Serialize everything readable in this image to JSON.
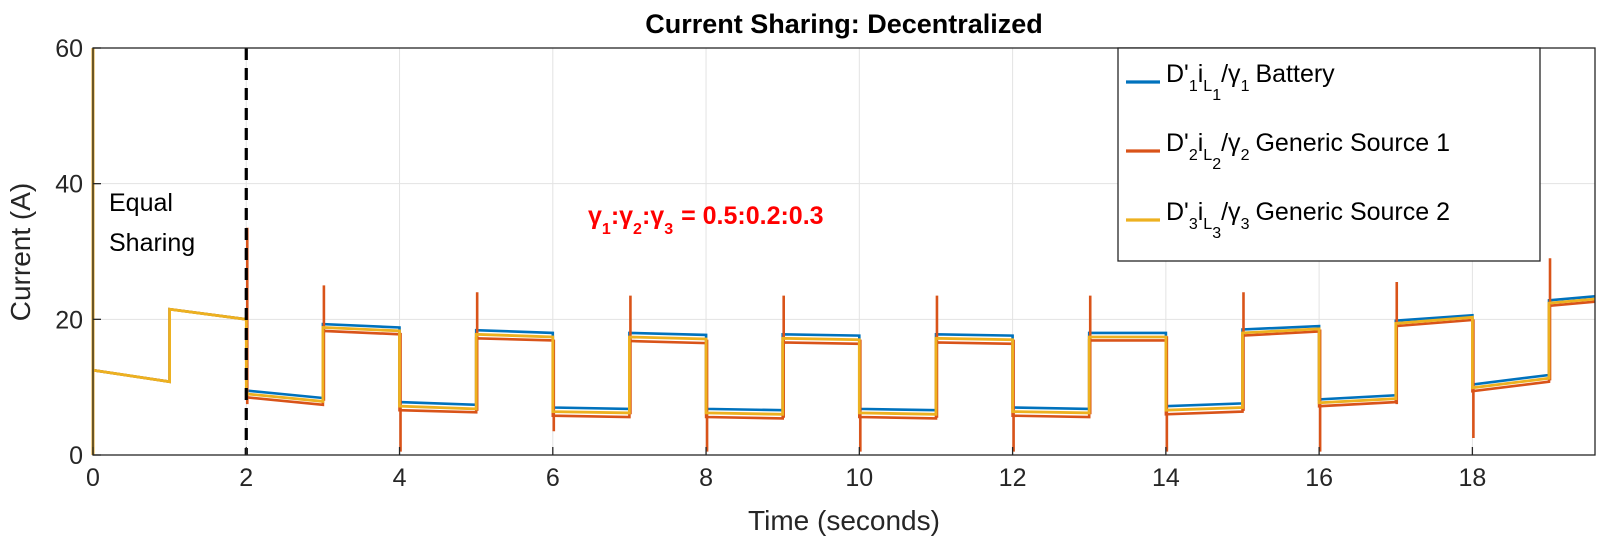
{
  "chart_data": {
    "type": "line",
    "title": "Current Sharing: Decentralized",
    "xlabel": "Time (seconds)",
    "ylabel": "Current (A)",
    "xlim": [
      0,
      19.6
    ],
    "ylim": [
      0,
      60
    ],
    "xticks": [
      0,
      2,
      4,
      6,
      8,
      10,
      12,
      14,
      16,
      18
    ],
    "yticks": [
      0,
      20,
      40,
      60
    ],
    "grid": true,
    "legend_position": "top-right",
    "colors": {
      "battery": "#0072BD",
      "source1": "#D95319",
      "source2": "#EDB120"
    },
    "legend": [
      {
        "pre": "D'",
        "s1": "1",
        "mid": "i",
        "s2": "L",
        "s3": "1",
        "slash": "/γ",
        "s4": "1",
        "label": "Battery",
        "color": "#0072BD"
      },
      {
        "pre": "D'",
        "s1": "2",
        "mid": "i",
        "s2": "L",
        "s3": "2",
        "slash": "/γ",
        "s4": "2",
        "label": "Generic Source 1",
        "color": "#D95319"
      },
      {
        "pre": "D'",
        "s1": "3",
        "mid": "i",
        "s2": "L",
        "s3": "3",
        "slash": "/γ",
        "s4": "3",
        "label": "Generic Source 2",
        "color": "#EDB120"
      }
    ],
    "annotations": {
      "equal_line1": "Equal",
      "equal_line2": "Sharing",
      "divider_x": 2,
      "ratio": {
        "g": "γ",
        "s1": "1",
        "c1": ":",
        "s2": "2",
        "c2": ":",
        "s3": "3",
        "value": "= 0.5:0.2:0.3"
      }
    },
    "equal_phase": [
      [
        0,
        12.5
      ],
      [
        1,
        10.8
      ],
      [
        1,
        21.5
      ],
      [
        2,
        20
      ]
    ],
    "step_segments": [
      {
        "start": 2,
        "end": 3,
        "battery": [
          9.5,
          8.4
        ],
        "source1": [
          8.5,
          7.4
        ],
        "source2": [
          9.0,
          7.9
        ]
      },
      {
        "start": 3,
        "end": 4,
        "battery": [
          19.3,
          18.8
        ],
        "source1": [
          18.3,
          17.8
        ],
        "source2": [
          18.8,
          18.3
        ]
      },
      {
        "start": 4,
        "end": 5,
        "battery": [
          7.8,
          7.4
        ],
        "source1": [
          6.6,
          6.3
        ],
        "source2": [
          7.2,
          6.8
        ]
      },
      {
        "start": 5,
        "end": 6,
        "battery": [
          18.4,
          18.0
        ],
        "source1": [
          17.2,
          16.9
        ],
        "source2": [
          17.8,
          17.4
        ]
      },
      {
        "start": 6,
        "end": 7,
        "battery": [
          7.0,
          6.8
        ],
        "source1": [
          5.8,
          5.6
        ],
        "source2": [
          6.4,
          6.2
        ]
      },
      {
        "start": 7,
        "end": 8,
        "battery": [
          18.0,
          17.7
        ],
        "source1": [
          16.8,
          16.5
        ],
        "source2": [
          17.4,
          17.1
        ]
      },
      {
        "start": 8,
        "end": 9,
        "battery": [
          6.8,
          6.6
        ],
        "source1": [
          5.6,
          5.4
        ],
        "source2": [
          6.2,
          6.0
        ]
      },
      {
        "start": 9,
        "end": 10,
        "battery": [
          17.8,
          17.6
        ],
        "source1": [
          16.6,
          16.4
        ],
        "source2": [
          17.2,
          17.0
        ]
      },
      {
        "start": 10,
        "end": 11,
        "battery": [
          6.8,
          6.6
        ],
        "source1": [
          5.6,
          5.4
        ],
        "source2": [
          6.2,
          6.0
        ]
      },
      {
        "start": 11,
        "end": 12,
        "battery": [
          17.8,
          17.6
        ],
        "source1": [
          16.6,
          16.4
        ],
        "source2": [
          17.2,
          17.0
        ]
      },
      {
        "start": 12,
        "end": 13,
        "battery": [
          7.0,
          6.8
        ],
        "source1": [
          5.8,
          5.6
        ],
        "source2": [
          6.4,
          6.2
        ]
      },
      {
        "start": 13,
        "end": 14,
        "battery": [
          18.0,
          18.0
        ],
        "source1": [
          16.9,
          16.9
        ],
        "source2": [
          17.4,
          17.4
        ]
      },
      {
        "start": 14,
        "end": 15,
        "battery": [
          7.2,
          7.6
        ],
        "source1": [
          6.0,
          6.4
        ],
        "source2": [
          6.6,
          7.0
        ]
      },
      {
        "start": 15,
        "end": 16,
        "battery": [
          18.5,
          19.0
        ],
        "source1": [
          17.6,
          18.2
        ],
        "source2": [
          18.0,
          18.6
        ]
      },
      {
        "start": 16,
        "end": 17,
        "battery": [
          8.2,
          8.8
        ],
        "source1": [
          7.2,
          7.8
        ],
        "source2": [
          7.7,
          8.3
        ]
      },
      {
        "start": 17,
        "end": 18,
        "battery": [
          19.8,
          20.6
        ],
        "source1": [
          19.0,
          19.9
        ],
        "source2": [
          19.4,
          20.3
        ]
      },
      {
        "start": 18,
        "end": 19,
        "battery": [
          10.4,
          11.8
        ],
        "source1": [
          9.4,
          10.8
        ],
        "source2": [
          9.9,
          11.3
        ]
      },
      {
        "start": 19,
        "end": 19.6,
        "battery": [
          22.8,
          23.4
        ],
        "source1": [
          22.0,
          22.6
        ],
        "source2": [
          22.4,
          23.0
        ]
      }
    ],
    "source1_spikes": [
      {
        "x": 2,
        "low": 7.5,
        "high": 33.5
      },
      {
        "x": 3,
        "low": 8.0,
        "high": 25.0
      },
      {
        "x": 4,
        "low": 0.5,
        "high": 18.0
      },
      {
        "x": 5,
        "low": 6.5,
        "high": 24.0
      },
      {
        "x": 6,
        "low": 3.5,
        "high": 17.0
      },
      {
        "x": 7,
        "low": 6.0,
        "high": 23.5
      },
      {
        "x": 8,
        "low": 0.5,
        "high": 17.0
      },
      {
        "x": 9,
        "low": 5.5,
        "high": 23.5
      },
      {
        "x": 10,
        "low": 0.5,
        "high": 17.0
      },
      {
        "x": 11,
        "low": 5.5,
        "high": 23.5
      },
      {
        "x": 12,
        "low": 0.5,
        "high": 17.0
      },
      {
        "x": 13,
        "low": 6.0,
        "high": 23.5
      },
      {
        "x": 14,
        "low": 0.5,
        "high": 17.5
      },
      {
        "x": 15,
        "low": 6.5,
        "high": 24.0
      },
      {
        "x": 16,
        "low": 0.5,
        "high": 18.5
      },
      {
        "x": 17,
        "low": 7.5,
        "high": 25.5
      },
      {
        "x": 18,
        "low": 2.5,
        "high": 20.0
      },
      {
        "x": 19,
        "low": 11.0,
        "high": 29.0
      }
    ]
  }
}
